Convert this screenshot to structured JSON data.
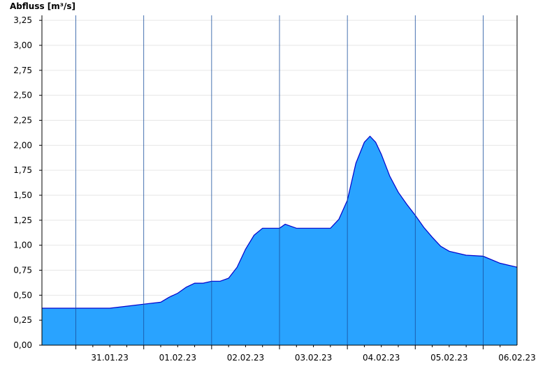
{
  "chart_data": {
    "type": "area",
    "ylabel": "Abfluss [m³/s]",
    "ylim": [
      0,
      3.3
    ],
    "yticks": [
      0,
      0.25,
      0.5,
      0.75,
      1.0,
      1.25,
      1.5,
      1.75,
      2.0,
      2.25,
      2.5,
      2.75,
      3.0,
      3.25
    ],
    "ytick_labels": [
      "0,00",
      "0,25",
      "0,50",
      "0,75",
      "1,00",
      "1,25",
      "1,50",
      "1,75",
      "2,00",
      "2,25",
      "2,50",
      "2,75",
      "3,00",
      "3,25"
    ],
    "xlim": [
      "2023-01-30T12:00",
      "2023-02-06T12:00"
    ],
    "day_labels": [
      {
        "date": "2023-01-31",
        "label": "31.01.23"
      },
      {
        "date": "2023-02-01",
        "label": "01.02.23"
      },
      {
        "date": "2023-02-02",
        "label": "02.02.23"
      },
      {
        "date": "2023-02-03",
        "label": "03.02.23"
      },
      {
        "date": "2023-02-04",
        "label": "04.02.23"
      },
      {
        "date": "2023-02-05",
        "label": "05.02.23"
      },
      {
        "date": "2023-02-06",
        "label": "06.02.23"
      }
    ],
    "grid": true,
    "colors": {
      "fill": "#29a3ff",
      "line": "#0000cc",
      "grid": "#e6e6e6",
      "axis": "#000000"
    },
    "series": [
      {
        "x": [
          "2023-01-30T12:00",
          "2023-01-31T12:00",
          "2023-01-31T18:00",
          "2023-02-01T00:00",
          "2023-02-01T06:00",
          "2023-02-01T09:00",
          "2023-02-01T12:00",
          "2023-02-01T15:00",
          "2023-02-01T18:00",
          "2023-02-01T21:00",
          "2023-02-02T00:00",
          "2023-02-02T03:00",
          "2023-02-02T06:00",
          "2023-02-02T09:00",
          "2023-02-02T12:00",
          "2023-02-02T15:00",
          "2023-02-02T18:00",
          "2023-02-02T21:00",
          "2023-02-03T00:00",
          "2023-02-03T02:00",
          "2023-02-03T06:00",
          "2023-02-03T12:00",
          "2023-02-03T18:00",
          "2023-02-03T21:00",
          "2023-02-04T00:00",
          "2023-02-04T03:00",
          "2023-02-04T06:00",
          "2023-02-04T08:00",
          "2023-02-04T10:00",
          "2023-02-04T12:00",
          "2023-02-04T15:00",
          "2023-02-04T18:00",
          "2023-02-04T21:00",
          "2023-02-05T00:00",
          "2023-02-05T03:00",
          "2023-02-05T06:00",
          "2023-02-05T09:00",
          "2023-02-05T12:00",
          "2023-02-05T18:00",
          "2023-02-06T00:00",
          "2023-02-06T06:00",
          "2023-02-06T12:00"
        ],
        "values": [
          0.37,
          0.37,
          0.39,
          0.41,
          0.43,
          0.48,
          0.52,
          0.58,
          0.62,
          0.62,
          0.64,
          0.64,
          0.67,
          0.78,
          0.96,
          1.1,
          1.17,
          1.17,
          1.17,
          1.21,
          1.17,
          1.17,
          1.17,
          1.26,
          1.45,
          1.82,
          2.03,
          2.09,
          2.03,
          1.91,
          1.69,
          1.53,
          1.41,
          1.3,
          1.18,
          1.08,
          0.99,
          0.94,
          0.9,
          0.89,
          0.82,
          0.78
        ]
      }
    ]
  }
}
